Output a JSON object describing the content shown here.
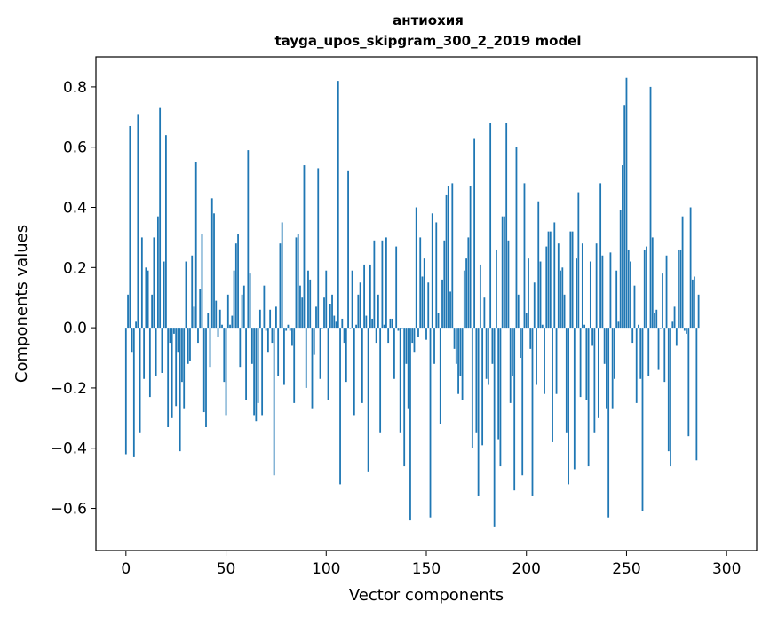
{
  "chart_data": {
    "type": "bar",
    "title": "антиохия",
    "subtitle": "tayga_upos_skipgram_300_2_2019 model",
    "xlabel": "Vector components",
    "ylabel": "Components values",
    "xlim": [
      -15,
      315
    ],
    "ylim": [
      -0.74,
      0.9
    ],
    "xticks": [
      0,
      50,
      100,
      150,
      200,
      250,
      300
    ],
    "yticks": [
      -0.6,
      -0.4,
      -0.2,
      0.0,
      0.2,
      0.4,
      0.6,
      0.8
    ],
    "ytick_labels": [
      "−0.6",
      "−0.4",
      "−0.2",
      "0.0",
      "0.2",
      "0.4",
      "0.6",
      "0.8"
    ],
    "xtick_labels": [
      "0",
      "50",
      "100",
      "150",
      "200",
      "250",
      "300"
    ],
    "grid": false,
    "bar_color": "#1f77b4",
    "values": [
      -0.42,
      0.11,
      0.67,
      -0.08,
      -0.43,
      0.02,
      0.71,
      -0.35,
      0.3,
      -0.17,
      0.2,
      0.19,
      -0.23,
      0.11,
      0.3,
      -0.16,
      0.37,
      0.73,
      -0.15,
      0.22,
      0.64,
      -0.33,
      -0.05,
      -0.3,
      -0.02,
      -0.26,
      -0.08,
      -0.41,
      -0.18,
      -0.27,
      0.22,
      -0.12,
      -0.11,
      0.24,
      0.07,
      0.55,
      -0.05,
      0.13,
      0.31,
      -0.28,
      -0.33,
      0.05,
      -0.13,
      0.43,
      0.38,
      0.09,
      -0.03,
      0.06,
      0.01,
      -0.18,
      -0.29,
      0.11,
      0.01,
      0.04,
      0.19,
      0.28,
      0.31,
      -0.13,
      0.11,
      0.14,
      -0.24,
      0.59,
      0.18,
      -0.12,
      -0.29,
      -0.31,
      -0.25,
      0.06,
      -0.29,
      0.14,
      -0.01,
      -0.08,
      0.06,
      -0.05,
      -0.49,
      0.07,
      -0.16,
      0.28,
      0.35,
      -0.19,
      -0.01,
      0.01,
      -0.01,
      -0.06,
      -0.25,
      0.3,
      0.31,
      0.14,
      0.1,
      0.54,
      -0.2,
      0.19,
      0.16,
      -0.27,
      -0.09,
      0.07,
      0.53,
      -0.17,
      0.0,
      0.1,
      0.19,
      -0.24,
      0.08,
      0.11,
      0.04,
      0.02,
      0.82,
      -0.52,
      0.03,
      -0.05,
      -0.18,
      0.52,
      0.0,
      0.19,
      -0.29,
      0.01,
      0.11,
      0.15,
      -0.25,
      0.21,
      0.04,
      -0.48,
      0.21,
      0.03,
      0.29,
      -0.05,
      0.11,
      -0.35,
      0.29,
      0.01,
      0.3,
      -0.05,
      0.03,
      0.03,
      -0.17,
      0.27,
      -0.01,
      -0.35,
      0.0,
      -0.46,
      -0.12,
      -0.27,
      -0.64,
      -0.05,
      -0.08,
      0.4,
      -0.03,
      0.3,
      0.17,
      0.23,
      -0.04,
      0.15,
      -0.63,
      0.38,
      -0.12,
      0.35,
      0.05,
      -0.32,
      0.16,
      0.29,
      0.44,
      0.47,
      0.12,
      0.48,
      -0.07,
      -0.12,
      -0.22,
      -0.16,
      -0.24,
      0.19,
      0.23,
      0.3,
      0.47,
      -0.4,
      0.63,
      -0.35,
      -0.56,
      0.21,
      -0.39,
      0.1,
      -0.17,
      -0.19,
      0.68,
      -0.12,
      -0.66,
      0.26,
      -0.37,
      -0.46,
      0.37,
      0.37,
      0.68,
      0.29,
      -0.25,
      -0.16,
      -0.54,
      0.6,
      0.11,
      -0.1,
      -0.49,
      0.48,
      0.05,
      0.23,
      -0.07,
      -0.56,
      0.15,
      -0.19,
      0.42,
      0.22,
      0.01,
      -0.22,
      0.27,
      0.32,
      0.32,
      -0.38,
      0.35,
      -0.22,
      0.28,
      0.19,
      0.2,
      0.11,
      -0.35,
      -0.52,
      0.32,
      0.32,
      -0.47,
      0.23,
      0.45,
      -0.23,
      0.28,
      0.01,
      -0.24,
      -0.46,
      0.22,
      -0.06,
      -0.35,
      0.28,
      -0.3,
      0.48,
      0.24,
      -0.12,
      -0.27,
      -0.63,
      0.25,
      -0.27,
      -0.17,
      0.19,
      0.02,
      0.39,
      0.54,
      0.74,
      0.83,
      0.26,
      0.22,
      -0.05,
      0.14,
      -0.25,
      0.01,
      -0.17,
      -0.61,
      0.26,
      0.27,
      -0.16,
      0.8,
      0.3,
      0.05,
      0.06,
      -0.14,
      0.0,
      0.18,
      -0.18,
      0.24,
      -0.41,
      -0.46,
      0.02,
      0.07,
      -0.06,
      0.26,
      0.26,
      0.37,
      -0.01,
      -0.02,
      -0.36,
      0.4,
      0.16,
      0.17,
      -0.44,
      0.11
    ]
  }
}
